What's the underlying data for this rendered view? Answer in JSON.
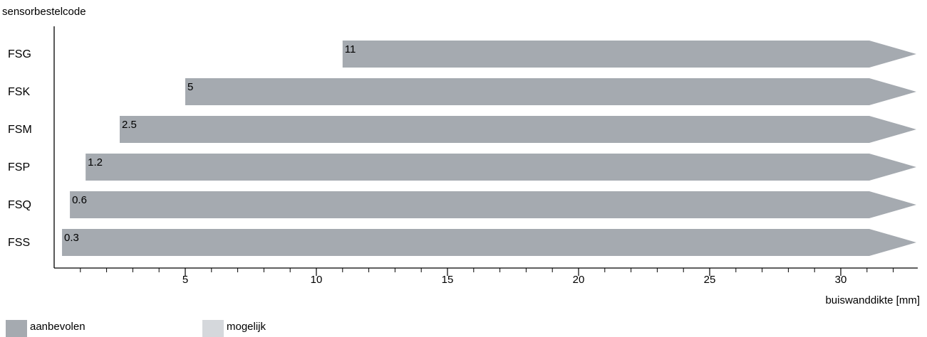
{
  "chart_data": {
    "type": "bar",
    "orientation": "horizontal",
    "ylabel": "sensorbestelcode",
    "xlabel": "buiswanddikte [mm]",
    "categories": [
      "FSG",
      "FSK",
      "FSM",
      "FSP",
      "FSQ",
      "FSS"
    ],
    "series": [
      {
        "name": "aanbevolen",
        "start": [
          11,
          5,
          2.5,
          1.2,
          0.6,
          0.3
        ],
        "start_labels": [
          "11",
          "5",
          "2.5",
          "1.2",
          "0.6",
          "0.3"
        ],
        "open_ended": true
      }
    ],
    "xlim": [
      0,
      33
    ],
    "xticks": [
      5,
      10,
      15,
      20,
      25,
      30
    ],
    "xtick_labels": [
      "5",
      "10",
      "15",
      "20",
      "25",
      "30"
    ],
    "minor_tick_step": 1,
    "grid": false,
    "legend": {
      "placement": "bottom-left",
      "items": [
        {
          "label": "aanbevolen",
          "color": "#a5aab0"
        },
        {
          "label": "mogelijk",
          "color": "#d5d8dc"
        }
      ]
    },
    "colors": {
      "recommended": "#a5aab0",
      "possible": "#d5d8dc",
      "axis": "#000000"
    }
  }
}
